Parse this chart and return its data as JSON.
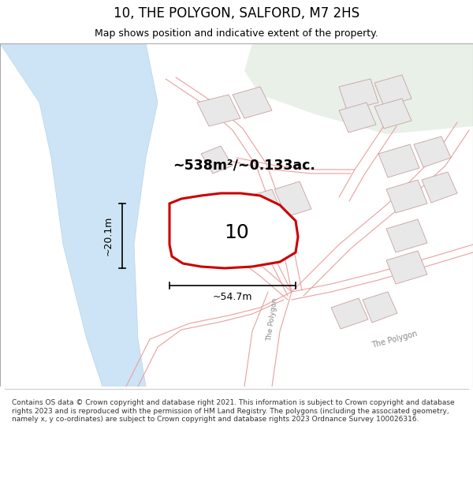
{
  "title": "10, THE POLYGON, SALFORD, M7 2HS",
  "subtitle": "Map shows position and indicative extent of the property.",
  "footer": "Contains OS data © Crown copyright and database right 2021. This information is subject to Crown copyright and database rights 2023 and is reproduced with the permission of HM Land Registry. The polygons (including the associated geometry, namely x, y co-ordinates) are subject to Crown copyright and database rights 2023 Ordnance Survey 100026316.",
  "bg_map": "#f8f8f5",
  "water_color": "#cce4f5",
  "water_edge": "#b8d4e8",
  "green_color": "#e8f0e8",
  "plot_color": "#cc0000",
  "plot_fill": "#ffffff",
  "road_color": "#e8a0a0",
  "road_lw": 0.8,
  "bld_fill": "#e8e8e8",
  "bld_edge": "#c8a0a0",
  "area_text": "~538m²/~0.133ac.",
  "width_text": "~54.7m",
  "height_text": "~20.1m",
  "plot_number": "10",
  "label1": "The Polygon",
  "label2": "The Polygon"
}
